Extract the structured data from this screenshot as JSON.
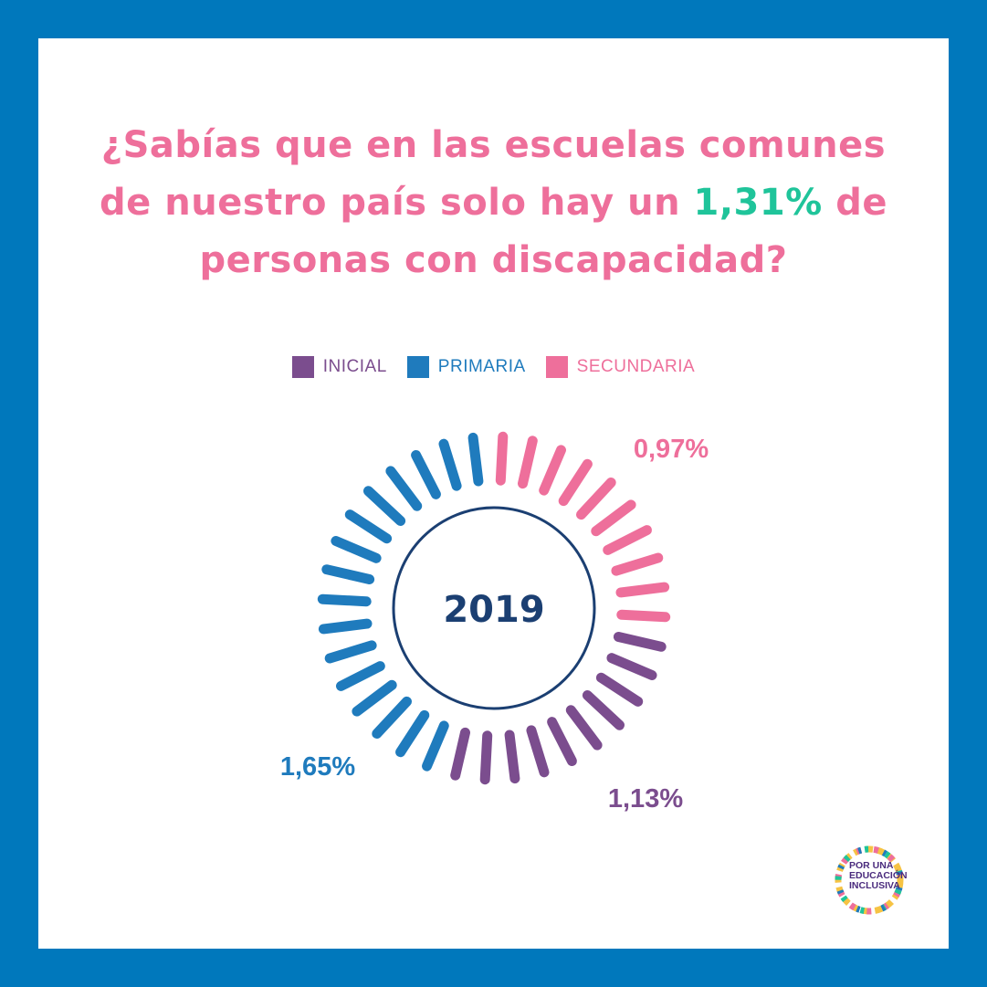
{
  "headline": {
    "line1": "¿Sabías que en las escuelas comunes",
    "line2_before": "de nuestro país solo hay un ",
    "line2_highlight": "1,31%",
    "line2_after": " de",
    "line3": "personas con discapacidad?"
  },
  "colors": {
    "frame": "#0078bc",
    "pink": "#ee6f9b",
    "green": "#1fc49a",
    "purple": "#7b4d8e",
    "blue": "#1f7bbd",
    "navy": "#1b3f72"
  },
  "chart_data": {
    "type": "radial",
    "title": "",
    "center_label": "2019",
    "legend": [
      {
        "name": "INICIAL",
        "color": "#7b4d8e"
      },
      {
        "name": "PRIMARIA",
        "color": "#1f7bbd"
      },
      {
        "name": "SECUNDARIA",
        "color": "#ee6f9b"
      }
    ],
    "series": [
      {
        "name": "SECUNDARIA",
        "value": 0.97,
        "label": "0,97%",
        "color": "#ee6f9b",
        "ticks": 10
      },
      {
        "name": "INICIAL",
        "value": 1.13,
        "label": "1,13%",
        "color": "#7b4d8e",
        "ticks": 10
      },
      {
        "name": "PRIMARIA",
        "value": 1.65,
        "label": "1,65%",
        "color": "#1f7bbd",
        "ticks": 16
      }
    ]
  },
  "logo": {
    "line1": "POR UNA",
    "line2": "EDUCACIÓN",
    "line3": "INCLUSIVA"
  }
}
